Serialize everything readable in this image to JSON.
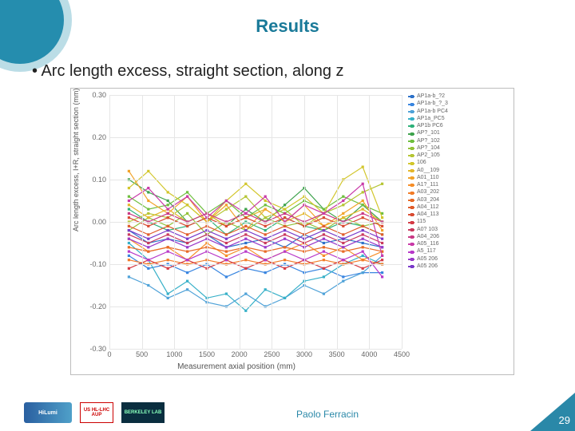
{
  "title": {
    "text": "Results",
    "fontsize": 22,
    "color": "#1a7a99"
  },
  "bullet": "Arc length excess, straight section, along z",
  "author": "Paolo Ferracin",
  "page": "29",
  "chart": {
    "type": "line",
    "xlabel": "Measurement axial position (mm)",
    "ylabel": "Arc length excess, I+R, straight section (mm)",
    "xlim": [
      0,
      4500
    ],
    "ylim": [
      -0.3,
      0.3
    ],
    "xtick_step": 500,
    "yticks": [
      -0.3,
      -0.2,
      -0.1,
      0.0,
      0.1,
      0.2,
      0.3
    ],
    "ytick_labels": [
      "-0.30",
      "-0.20",
      "-0.10",
      "0.00",
      "0.10",
      "0.20",
      "0.30"
    ],
    "background_color": "#ffffff",
    "grid_color": "#e6e6e6",
    "label_fontsize": 9,
    "tick_fontsize": 9,
    "legend_fontsize": 7,
    "series": [
      {
        "label": "AP1a-b_?2",
        "color": "#2e72c9",
        "x": [
          300,
          600,
          900,
          1200,
          1500,
          1800,
          2100,
          2400,
          2700,
          3000,
          3300,
          3600,
          3900,
          4200
        ],
        "y": [
          -0.02,
          -0.05,
          -0.04,
          -0.05,
          -0.03,
          -0.06,
          -0.05,
          -0.04,
          -0.06,
          -0.03,
          -0.05,
          -0.04,
          -0.05,
          -0.06
        ]
      },
      {
        "label": "AP1a-b_?_3",
        "color": "#3a86e0",
        "x": [
          300,
          600,
          900,
          1200,
          1500,
          1800,
          2100,
          2400,
          2700,
          3000,
          3300,
          3600,
          3900,
          4200
        ],
        "y": [
          -0.08,
          -0.11,
          -0.1,
          -0.12,
          -0.1,
          -0.13,
          -0.11,
          -0.12,
          -0.1,
          -0.12,
          -0.11,
          -0.13,
          -0.12,
          -0.12
        ]
      },
      {
        "label": "AP1a-b PC4",
        "color": "#4fa2d8",
        "x": [
          300,
          600,
          900,
          1200,
          1500,
          1800,
          2100,
          2400,
          2700,
          3000,
          3300,
          3600,
          3900,
          4200
        ],
        "y": [
          -0.13,
          -0.15,
          -0.18,
          -0.16,
          -0.19,
          -0.2,
          -0.17,
          -0.2,
          -0.18,
          -0.15,
          -0.17,
          -0.14,
          -0.12,
          -0.08
        ]
      },
      {
        "label": "AP1a_PC5",
        "color": "#37b0c8",
        "x": [
          300,
          600,
          900,
          1200,
          1500,
          1800,
          2100,
          2400,
          2700,
          3000,
          3300,
          3600,
          3900,
          4200
        ],
        "y": [
          -0.05,
          -0.09,
          -0.17,
          -0.14,
          -0.18,
          -0.17,
          -0.21,
          -0.16,
          -0.18,
          -0.14,
          -0.13,
          -0.1,
          -0.08,
          -0.1
        ]
      },
      {
        "label": "AP1b PC6",
        "color": "#2fb17a",
        "x": [
          300,
          600,
          900,
          1200,
          1500,
          1800,
          2100,
          2400,
          2700,
          3000,
          3300,
          3600,
          3900,
          4200
        ],
        "y": [
          0.03,
          0.0,
          -0.02,
          -0.01,
          0.01,
          -0.03,
          0.0,
          -0.02,
          0.01,
          -0.01,
          -0.02,
          0.0,
          -0.01,
          -0.03
        ]
      },
      {
        "label": "AP?_101",
        "color": "#3fa34d",
        "x": [
          300,
          600,
          900,
          1200,
          1500,
          1800,
          2100,
          2400,
          2700,
          3000,
          3300,
          3600,
          3900,
          4200
        ],
        "y": [
          0.1,
          0.07,
          0.05,
          0.0,
          0.02,
          -0.01,
          0.03,
          0.0,
          0.04,
          0.08,
          0.03,
          0.0,
          0.04,
          0.0
        ]
      },
      {
        "label": "AP?_102",
        "color": "#6fbf3f",
        "x": [
          300,
          600,
          900,
          1200,
          1500,
          1800,
          2100,
          2400,
          2700,
          3000,
          3300,
          3600,
          3900,
          4200
        ],
        "y": [
          0.06,
          0.03,
          0.04,
          0.07,
          0.02,
          0.05,
          0.01,
          0.04,
          0.02,
          0.05,
          0.03,
          0.06,
          0.04,
          0.02
        ]
      },
      {
        "label": "AP?_104",
        "color": "#93c23a",
        "x": [
          300,
          600,
          900,
          1200,
          1500,
          1800,
          2100,
          2400,
          2700,
          3000,
          3300,
          3600,
          3900,
          4200
        ],
        "y": [
          -0.02,
          0.01,
          -0.01,
          0.02,
          -0.03,
          0.0,
          -0.02,
          0.01,
          -0.01,
          0.0,
          -0.02,
          0.01,
          -0.01,
          0.0
        ]
      },
      {
        "label": "AP2_105",
        "color": "#b5c534",
        "x": [
          300,
          600,
          900,
          1200,
          1500,
          1800,
          2100,
          2400,
          2700,
          3000,
          3300,
          3600,
          3900,
          4200
        ],
        "y": [
          0.0,
          0.02,
          0.01,
          0.04,
          0.0,
          0.03,
          0.06,
          0.01,
          0.03,
          -0.01,
          0.02,
          0.04,
          0.07,
          0.09
        ]
      },
      {
        "label": "106",
        "color": "#d2c62c",
        "x": [
          300,
          600,
          900,
          1200,
          1500,
          1800,
          2100,
          2400,
          2700,
          3000,
          3300,
          3600,
          3900,
          4200
        ],
        "y": [
          0.08,
          0.12,
          0.07,
          0.04,
          0.0,
          0.05,
          0.09,
          0.05,
          0.03,
          0.06,
          0.02,
          0.1,
          0.13,
          0.01
        ]
      },
      {
        "label": "A0__109",
        "color": "#e4b72b",
        "x": [
          300,
          600,
          900,
          1200,
          1500,
          1800,
          2100,
          2400,
          2700,
          3000,
          3300,
          3600,
          3900,
          4200
        ],
        "y": [
          0.04,
          0.01,
          0.03,
          0.0,
          0.02,
          -0.01,
          0.01,
          0.03,
          0.0,
          0.02,
          -0.01,
          0.01,
          0.03,
          0.0
        ]
      },
      {
        "label": "A01_110",
        "color": "#f2a32a",
        "x": [
          300,
          600,
          900,
          1200,
          1500,
          1800,
          2100,
          2400,
          2700,
          3000,
          3300,
          3600,
          3900,
          4200
        ],
        "y": [
          0.12,
          0.05,
          0.02,
          0.06,
          0.0,
          0.04,
          -0.02,
          0.03,
          0.0,
          0.04,
          -0.01,
          0.02,
          0.05,
          -0.02
        ]
      },
      {
        "label": "A1?_111",
        "color": "#f68f2a",
        "x": [
          300,
          600,
          900,
          1200,
          1500,
          1800,
          2100,
          2400,
          2700,
          3000,
          3300,
          3600,
          3900,
          4200
        ],
        "y": [
          -0.04,
          -0.07,
          -0.06,
          -0.09,
          -0.05,
          -0.08,
          -0.06,
          -0.09,
          -0.07,
          -0.05,
          -0.08,
          -0.06,
          -0.09,
          -0.07
        ]
      },
      {
        "label": "A03_202",
        "color": "#f27c28",
        "x": [
          300,
          600,
          900,
          1200,
          1500,
          1800,
          2100,
          2400,
          2700,
          3000,
          3300,
          3600,
          3900,
          4200
        ],
        "y": [
          -0.09,
          -0.1,
          -0.09,
          -0.1,
          -0.09,
          -0.1,
          -0.09,
          -0.1,
          -0.09,
          -0.1,
          -0.09,
          -0.1,
          -0.09,
          -0.1
        ]
      },
      {
        "label": "A03_204",
        "color": "#e86a27",
        "x": [
          300,
          600,
          900,
          1200,
          1500,
          1800,
          2100,
          2400,
          2700,
          3000,
          3300,
          3600,
          3900,
          4200
        ],
        "y": [
          -0.06,
          -0.07,
          -0.06,
          -0.07,
          -0.06,
          -0.07,
          -0.06,
          -0.07,
          -0.06,
          -0.07,
          -0.06,
          -0.07,
          -0.06,
          -0.07
        ]
      },
      {
        "label": "A04_112",
        "color": "#e05c2b",
        "x": [
          300,
          600,
          900,
          1200,
          1500,
          1800,
          2100,
          2400,
          2700,
          3000,
          3300,
          3600,
          3900,
          4200
        ],
        "y": [
          -0.01,
          -0.03,
          -0.01,
          -0.03,
          -0.01,
          -0.03,
          -0.01,
          -0.03,
          -0.01,
          -0.03,
          -0.01,
          -0.03,
          -0.01,
          -0.03
        ]
      },
      {
        "label": "A04_113",
        "color": "#d94c33",
        "x": [
          300,
          600,
          900,
          1200,
          1500,
          1800,
          2100,
          2400,
          2700,
          3000,
          3300,
          3600,
          3900,
          4200
        ],
        "y": [
          0.01,
          -0.01,
          0.01,
          -0.01,
          0.01,
          -0.01,
          0.01,
          -0.01,
          0.01,
          -0.01,
          0.01,
          -0.01,
          0.01,
          -0.01
        ]
      },
      {
        "label": "115",
        "color": "#d43c46",
        "x": [
          300,
          600,
          900,
          1200,
          1500,
          1800,
          2100,
          2400,
          2700,
          3000,
          3300,
          3600,
          3900,
          4200
        ],
        "y": [
          -0.11,
          -0.09,
          -0.11,
          -0.09,
          -0.11,
          -0.09,
          -0.11,
          -0.09,
          -0.11,
          -0.09,
          -0.11,
          -0.09,
          -0.11,
          -0.09
        ]
      },
      {
        "label": "A0? 103",
        "color": "#c93a5e",
        "x": [
          300,
          600,
          900,
          1200,
          1500,
          1800,
          2100,
          2400,
          2700,
          3000,
          3300,
          3600,
          3900,
          4200
        ],
        "y": [
          -0.03,
          -0.05,
          -0.03,
          -0.05,
          -0.03,
          -0.05,
          -0.03,
          -0.05,
          -0.03,
          -0.05,
          -0.03,
          -0.05,
          -0.03,
          -0.05
        ]
      },
      {
        "label": "A04_206",
        "color": "#c93a86",
        "x": [
          300,
          600,
          900,
          1200,
          1500,
          1800,
          2100,
          2400,
          2700,
          3000,
          3300,
          3600,
          3900,
          4200
        ],
        "y": [
          0.02,
          0.0,
          0.02,
          0.0,
          0.02,
          0.0,
          0.02,
          0.0,
          0.02,
          0.0,
          0.02,
          0.0,
          0.02,
          0.0
        ]
      },
      {
        "label": "A05_116",
        "color": "#c93aa8",
        "x": [
          300,
          600,
          900,
          1200,
          1500,
          1800,
          2100,
          2400,
          2700,
          3000,
          3300,
          3600,
          3900,
          4200
        ],
        "y": [
          0.05,
          0.08,
          0.03,
          0.06,
          0.01,
          0.05,
          0.02,
          0.06,
          0.0,
          0.04,
          0.02,
          0.05,
          0.09,
          -0.08
        ]
      },
      {
        "label": "A5_117",
        "color": "#b83ac9",
        "x": [
          300,
          600,
          900,
          1200,
          1500,
          1800,
          2100,
          2400,
          2700,
          3000,
          3300,
          3600,
          3900,
          4200
        ],
        "y": [
          -0.07,
          -0.09,
          -0.07,
          -0.09,
          -0.07,
          -0.09,
          -0.07,
          -0.09,
          -0.07,
          -0.09,
          -0.07,
          -0.09,
          -0.07,
          -0.13
        ]
      },
      {
        "label": "A05 206",
        "color": "#9a3ac9",
        "x": [
          300,
          600,
          900,
          1200,
          1500,
          1800,
          2100,
          2400,
          2700,
          3000,
          3300,
          3600,
          3900,
          4200
        ],
        "y": [
          -0.04,
          -0.06,
          -0.04,
          -0.06,
          -0.04,
          -0.06,
          -0.04,
          -0.06,
          -0.04,
          -0.06,
          -0.04,
          -0.06,
          -0.04,
          -0.06
        ]
      },
      {
        "label": "A05 206",
        "color": "#7a3ac9",
        "x": [
          300,
          600,
          900,
          1200,
          1500,
          1800,
          2100,
          2400,
          2700,
          3000,
          3300,
          3600,
          3900,
          4200
        ],
        "y": [
          -0.02,
          -0.04,
          -0.02,
          -0.04,
          -0.02,
          -0.04,
          -0.02,
          -0.04,
          -0.02,
          -0.04,
          -0.02,
          -0.04,
          -0.02,
          -0.04
        ]
      }
    ]
  },
  "logos": {
    "hilumi": "HiLumi",
    "hllhc": "US HL-LHC AUP",
    "lbl": "BERKELEY LAB"
  }
}
